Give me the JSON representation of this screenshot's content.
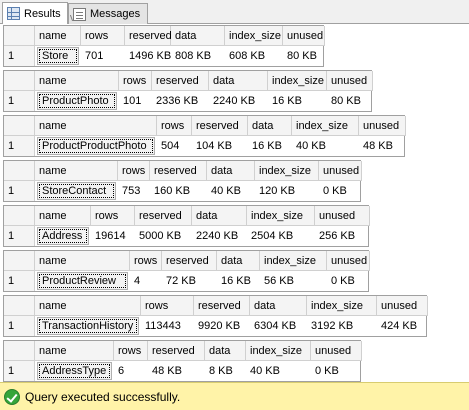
{
  "tabs": [
    {
      "label": "Results",
      "icon": "results-grid-icon",
      "active": true
    },
    {
      "label": "Messages",
      "icon": "messages-icon",
      "active": false
    }
  ],
  "grids": [
    {
      "columns": [
        "name",
        "rows",
        "reserved",
        "data",
        "index_size",
        "unused"
      ],
      "row": {
        "num": "1",
        "cells": [
          "Store",
          "701",
          "1496 KB",
          "808 KB",
          "608 KB",
          "80 KB"
        ]
      }
    },
    {
      "columns": [
        "name",
        "rows",
        "reserved",
        "data",
        "index_size",
        "unused"
      ],
      "row": {
        "num": "1",
        "cells": [
          "ProductPhoto",
          "101",
          "2336 KB",
          "2240 KB",
          "16 KB",
          "80 KB"
        ]
      }
    },
    {
      "columns": [
        "name",
        "rows",
        "reserved",
        "data",
        "index_size",
        "unused"
      ],
      "row": {
        "num": "1",
        "cells": [
          "ProductProductPhoto",
          "504",
          "104 KB",
          "16 KB",
          "40 KB",
          "48 KB"
        ]
      }
    },
    {
      "columns": [
        "name",
        "rows",
        "reserved",
        "data",
        "index_size",
        "unused"
      ],
      "row": {
        "num": "1",
        "cells": [
          "StoreContact",
          "753",
          "160 KB",
          "40 KB",
          "120 KB",
          "0 KB"
        ]
      }
    },
    {
      "columns": [
        "name",
        "rows",
        "reserved",
        "data",
        "index_size",
        "unused"
      ],
      "row": {
        "num": "1",
        "cells": [
          "Address",
          "19614",
          "5000 KB",
          "2240 KB",
          "2504 KB",
          "256 KB"
        ]
      }
    },
    {
      "columns": [
        "name",
        "rows",
        "reserved",
        "data",
        "index_size",
        "unused"
      ],
      "row": {
        "num": "1",
        "cells": [
          "ProductReview",
          "4",
          "72 KB",
          "16 KB",
          "56 KB",
          "0 KB"
        ]
      }
    },
    {
      "columns": [
        "name",
        "rows",
        "reserved",
        "data",
        "index_size",
        "unused"
      ],
      "row": {
        "num": "1",
        "cells": [
          "TransactionHistory",
          "113443",
          "9920 KB",
          "6304 KB",
          "3192 KB",
          "424 KB"
        ]
      }
    },
    {
      "columns": [
        "name",
        "rows",
        "reserved",
        "data",
        "index_size",
        "unused"
      ],
      "row": {
        "num": "1",
        "cells": [
          "AddressType",
          "6",
          "48 KB",
          "8 KB",
          "40 KB",
          "0 KB"
        ]
      }
    }
  ],
  "status": {
    "text": "Query executed successfully.",
    "icon": "success-check-icon",
    "color": "#fff3a8"
  }
}
